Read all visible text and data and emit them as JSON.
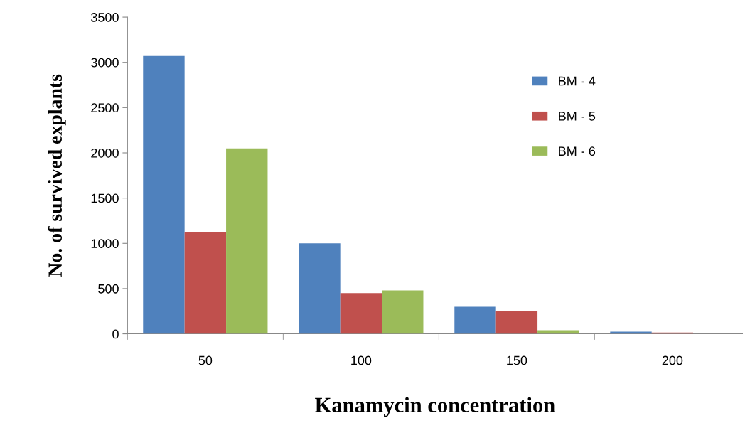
{
  "chart_data": {
    "type": "bar",
    "xlabel": "Kanamycin concentration",
    "ylabel": "No. of survived explants",
    "categories": [
      "50",
      "100",
      "150",
      "200"
    ],
    "series": [
      {
        "name": "BM - 4",
        "color": "#4f81bd",
        "values": [
          3070,
          1000,
          300,
          25
        ]
      },
      {
        "name": "BM - 5",
        "color": "#c0504d",
        "values": [
          1120,
          450,
          250,
          15
        ]
      },
      {
        "name": "BM - 6",
        "color": "#9bbb59",
        "values": [
          2050,
          480,
          40,
          null
        ]
      }
    ],
    "ylim": [
      0,
      3500
    ],
    "yticks": [
      0,
      500,
      1000,
      1500,
      2000,
      2500,
      3000,
      3500
    ],
    "grid": false,
    "legend": "top right"
  }
}
